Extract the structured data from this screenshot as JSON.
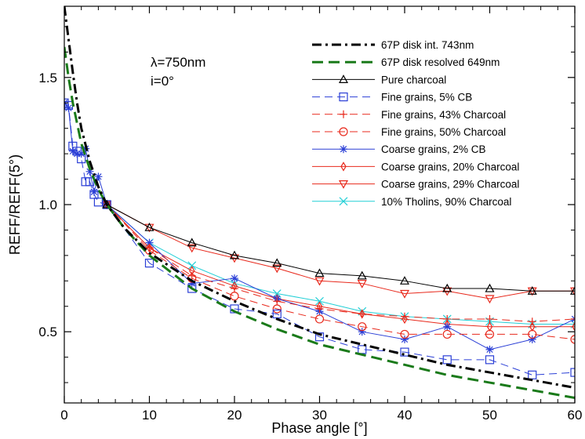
{
  "chart_data": {
    "type": "line",
    "xlabel": "Phase angle [°]",
    "ylabel": "REFF/REFF(5°)",
    "xlim": [
      0,
      60
    ],
    "ylim": [
      0.22,
      1.78
    ],
    "x_ticks": [
      "0",
      "10",
      "20",
      "30",
      "40",
      "50",
      "60"
    ],
    "y_ticks": [
      "0.5",
      "1.0",
      "1.5"
    ],
    "x_tick_values": [
      0,
      10,
      20,
      30,
      40,
      50,
      60
    ],
    "y_tick_values": [
      0.5,
      1.0,
      1.5
    ],
    "annotation_lines": [
      "λ=750nm",
      "i=0°"
    ],
    "legend_position": "top-right",
    "grid": false,
    "series": [
      {
        "name": "67P disk int. 743nm",
        "color": "#000000",
        "dash": "dashdot",
        "marker": "none",
        "width": 3,
        "x": [
          0,
          0.5,
          1,
          1.5,
          2,
          3,
          4,
          5,
          7,
          10,
          15,
          20,
          25,
          30,
          35,
          40,
          45,
          50,
          55,
          60
        ],
        "y": [
          1.78,
          1.65,
          1.52,
          1.4,
          1.3,
          1.17,
          1.07,
          1.0,
          0.91,
          0.81,
          0.7,
          0.62,
          0.55,
          0.49,
          0.45,
          0.41,
          0.37,
          0.34,
          0.31,
          0.28
        ]
      },
      {
        "name": "67P disk resolved 649nm",
        "color": "#1a7a1a",
        "dash": "longdash",
        "marker": "none",
        "width": 3,
        "x": [
          0,
          0.5,
          1,
          1.5,
          2,
          3,
          4,
          5,
          7,
          10,
          15,
          20,
          25,
          30,
          35,
          40,
          45,
          50,
          55,
          60
        ],
        "y": [
          1.62,
          1.5,
          1.4,
          1.32,
          1.24,
          1.14,
          1.06,
          1.0,
          0.91,
          0.8,
          0.67,
          0.58,
          0.51,
          0.45,
          0.41,
          0.37,
          0.33,
          0.3,
          0.27,
          0.24
        ]
      },
      {
        "name": "Pure charcoal",
        "color": "#000000",
        "dash": "solid",
        "marker": "triangle-up",
        "width": 1,
        "x": [
          5,
          10,
          15,
          20,
          25,
          30,
          35,
          40,
          45,
          50,
          55,
          60
        ],
        "y": [
          1.0,
          0.91,
          0.85,
          0.8,
          0.77,
          0.73,
          0.72,
          0.7,
          0.67,
          0.67,
          0.66,
          0.66
        ]
      },
      {
        "name": "Fine grains, 5% CB",
        "color": "#2b3fd6",
        "dash": "dash",
        "marker": "square",
        "width": 1,
        "x": [
          0,
          0.5,
          1,
          1.5,
          2,
          2.5,
          3,
          3.5,
          4,
          5,
          10,
          15,
          20,
          25,
          30,
          35,
          40,
          45,
          50,
          55,
          60
        ],
        "y": [
          1.4,
          1.39,
          1.23,
          1.21,
          1.18,
          1.09,
          1.09,
          1.04,
          1.01,
          1.0,
          0.77,
          0.67,
          0.59,
          0.57,
          0.48,
          0.43,
          0.42,
          0.39,
          0.39,
          0.33,
          0.34
        ]
      },
      {
        "name": "Fine grains, 43% Charcoal",
        "color": "#e8291c",
        "dash": "dash",
        "marker": "plus",
        "width": 1,
        "x": [
          5,
          10,
          15,
          20,
          25,
          30,
          35,
          40,
          45,
          50,
          55,
          60
        ],
        "y": [
          1.0,
          0.83,
          0.72,
          0.67,
          0.62,
          0.59,
          0.57,
          0.56,
          0.55,
          0.55,
          0.54,
          0.55
        ]
      },
      {
        "name": "Fine grains, 50% Charcoal",
        "color": "#e8291c",
        "dash": "dash",
        "marker": "circle",
        "width": 1,
        "x": [
          5,
          10,
          15,
          20,
          25,
          30,
          35,
          40,
          45,
          50,
          55,
          60
        ],
        "y": [
          1.0,
          0.82,
          0.71,
          0.64,
          0.59,
          0.55,
          0.52,
          0.49,
          0.49,
          0.49,
          0.49,
          0.47
        ]
      },
      {
        "name": "Coarse grains, 2% CB",
        "color": "#2b3fd6",
        "dash": "solid",
        "marker": "star",
        "width": 1,
        "x": [
          0,
          0.5,
          1,
          1.5,
          2,
          2.5,
          3,
          3.5,
          4,
          5,
          10,
          15,
          20,
          25,
          30,
          35,
          40,
          45,
          50,
          55,
          60
        ],
        "y": [
          1.4,
          1.38,
          1.21,
          1.2,
          1.2,
          1.22,
          1.13,
          1.05,
          1.11,
          1.0,
          0.85,
          0.69,
          0.71,
          0.63,
          0.58,
          0.5,
          0.47,
          0.52,
          0.43,
          0.47,
          0.55
        ]
      },
      {
        "name": "Coarse grains, 20% Charcoal",
        "color": "#e8291c",
        "dash": "solid",
        "marker": "diamond",
        "width": 1,
        "x": [
          5,
          10,
          15,
          20,
          25,
          30,
          35,
          40,
          45,
          50,
          55,
          60
        ],
        "y": [
          1.0,
          0.83,
          0.74,
          0.68,
          0.63,
          0.6,
          0.57,
          0.55,
          0.53,
          0.52,
          0.52,
          0.52
        ]
      },
      {
        "name": "Coarse grains, 29% Charcoal",
        "color": "#e8291c",
        "dash": "solid",
        "marker": "triangle-down",
        "width": 1,
        "x": [
          5,
          10,
          15,
          20,
          25,
          30,
          35,
          40,
          45,
          50,
          55,
          60
        ],
        "y": [
          1.0,
          0.91,
          0.83,
          0.79,
          0.75,
          0.7,
          0.69,
          0.65,
          0.66,
          0.63,
          0.66,
          0.66
        ]
      },
      {
        "name": "10% Tholins, 90% Charcoal",
        "color": "#22cfd6",
        "dash": "solid",
        "marker": "x",
        "width": 1,
        "x": [
          5,
          10,
          15,
          20,
          25,
          30,
          35,
          40,
          45,
          50,
          55,
          60
        ],
        "y": [
          1.0,
          0.85,
          0.76,
          0.69,
          0.65,
          0.62,
          0.58,
          0.56,
          0.55,
          0.54,
          0.53,
          0.53
        ]
      }
    ]
  }
}
